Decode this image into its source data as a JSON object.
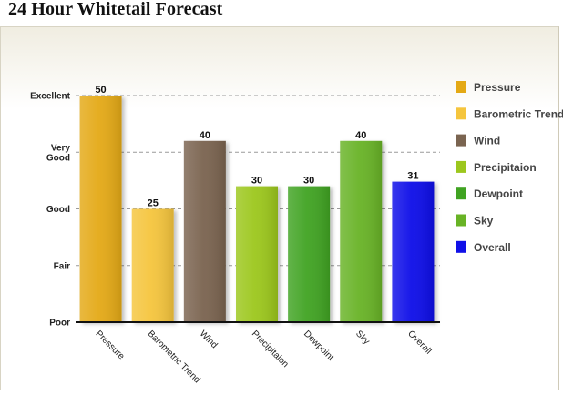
{
  "page": {
    "title": "24 Hour Whitetail Forecast"
  },
  "chart_data": {
    "type": "bar",
    "title": "",
    "xlabel": "",
    "ylabel": "",
    "ylim": [
      0,
      50
    ],
    "y_ticks": [
      {
        "value": 0,
        "label": "Poor"
      },
      {
        "value": 12.5,
        "label": "Fair"
      },
      {
        "value": 25,
        "label": "Good"
      },
      {
        "value": 37.5,
        "label": "Very Good"
      },
      {
        "value": 50,
        "label": "Excellent"
      }
    ],
    "grid": true,
    "legend": "right",
    "categories": [
      "Pressure",
      "Barometric Trend",
      "Wind",
      "Precipitaion",
      "Dewpoint",
      "Sky",
      "Overall"
    ],
    "legend_labels": [
      "Pressure",
      "Barometric Trend",
      "Wind",
      "Precipitaion",
      "Dewpoint",
      "Sky",
      "Overall"
    ],
    "values": [
      50,
      25,
      40,
      30,
      30,
      40,
      31
    ],
    "colors": [
      "#e4a915",
      "#f5c53d",
      "#7a6450",
      "#9cc71d",
      "#40a322",
      "#68b325",
      "#1010e8"
    ]
  }
}
